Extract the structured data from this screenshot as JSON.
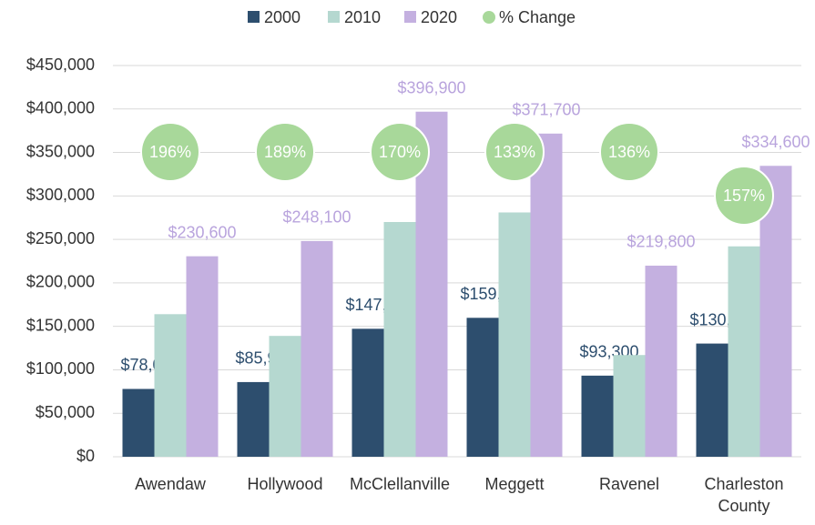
{
  "chart_data": {
    "type": "bar",
    "categories": [
      "Awendaw",
      "Hollywood",
      "McClellanville",
      "Meggett",
      "Ravenel",
      "Charleston County"
    ],
    "series": [
      {
        "name": "2000",
        "color": "#2d4e6e",
        "values": [
          78000,
          85900,
          147200,
          159800,
          93300,
          130200
        ],
        "value_labels": [
          "$78,000",
          "$85,900",
          "$147,200",
          "$159,800",
          "$93,300",
          "$130,200"
        ]
      },
      {
        "name": "2010",
        "color": "#b5d8d0",
        "values": [
          164000,
          139000,
          270000,
          281000,
          117000,
          242000
        ]
      },
      {
        "name": "2020",
        "color": "#c4b0e0",
        "values": [
          230600,
          248100,
          396900,
          371700,
          219800,
          334600
        ],
        "value_labels": [
          "$230,600",
          "$248,100",
          "$396,900",
          "$371,700",
          "$219,800",
          "$334,600"
        ]
      }
    ],
    "pct_change": {
      "name": "% Change",
      "color": "#a8d89a",
      "values": [
        196,
        189,
        170,
        133,
        136,
        157
      ],
      "value_labels": [
        "196%",
        "189%",
        "170%",
        "133%",
        "136%",
        "157%"
      ]
    },
    "ylim": [
      0,
      450000
    ],
    "yticks": [
      {
        "value": 0,
        "label": "$0"
      },
      {
        "value": 50000,
        "label": "$50,000"
      },
      {
        "value": 100000,
        "label": "$100,000"
      },
      {
        "value": 150000,
        "label": "$150,000"
      },
      {
        "value": 200000,
        "label": "$200,000"
      },
      {
        "value": 250000,
        "label": "$250,000"
      },
      {
        "value": 300000,
        "label": "$300,000"
      },
      {
        "value": 350000,
        "label": "$350,000"
      },
      {
        "value": 400000,
        "label": "$400,000"
      },
      {
        "value": 450000,
        "label": "$450,000"
      }
    ],
    "grid": true,
    "legend": "top"
  }
}
